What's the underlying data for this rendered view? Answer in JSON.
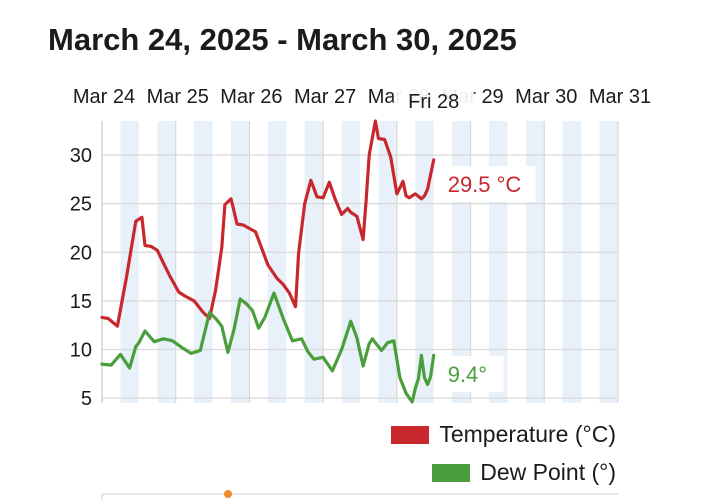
{
  "header": {
    "title": "March 24, 2025 - March 30, 2025"
  },
  "tooltip": {
    "label": "Fri 28"
  },
  "colors": {
    "temperature": "#c8282d",
    "dew_point": "#4a9e3c",
    "day_band": "#e8f1f9",
    "grid": "#d9d9d9"
  },
  "chart_data": {
    "type": "line",
    "title": "",
    "xlabel": "",
    "ylabel": "",
    "ylim": [
      4.5,
      33.5
    ],
    "y_ticks": [
      5,
      10,
      15,
      20,
      25,
      30
    ],
    "grid": true,
    "legend_position": "bottom-right",
    "x_domain": [
      "2025-03-24T00:00",
      "2025-03-31T00:00"
    ],
    "x_ticks": [
      {
        "date": "2025-03-24",
        "label": "Mar 24"
      },
      {
        "date": "2025-03-25",
        "label": "Mar 25"
      },
      {
        "date": "2025-03-26",
        "label": "Mar 26"
      },
      {
        "date": "2025-03-27",
        "label": "Mar 27"
      },
      {
        "date": "2025-03-28",
        "label": "Mar 28"
      },
      {
        "date": "2025-03-29",
        "label": "Mar 29"
      },
      {
        "date": "2025-03-30",
        "label": "Mar 30"
      },
      {
        "date": "2025-03-31",
        "label": "Mar 31"
      }
    ],
    "series": [
      {
        "name": "Temperature (°C)",
        "end_label": "29.5 °C",
        "x": [
          "2025-03-24T00:00",
          "2025-03-24T02:00",
          "2025-03-24T05:00",
          "2025-03-24T08:00",
          "2025-03-24T11:00",
          "2025-03-24T13:00",
          "2025-03-24T14:00",
          "2025-03-24T16:00",
          "2025-03-24T18:00",
          "2025-03-24T20:00",
          "2025-03-24T22:00",
          "2025-03-25T01:00",
          "2025-03-25T03:00",
          "2025-03-25T06:00",
          "2025-03-25T09:00",
          "2025-03-25T11:00",
          "2025-03-25T13:00",
          "2025-03-25T15:00",
          "2025-03-25T16:00",
          "2025-03-25T18:00",
          "2025-03-25T20:00",
          "2025-03-25T22:00",
          "2025-03-26T02:00",
          "2025-03-26T06:00",
          "2025-03-26T09:00",
          "2025-03-26T11:00",
          "2025-03-26T13:00",
          "2025-03-26T15:00",
          "2025-03-26T16:00",
          "2025-03-26T18:00",
          "2025-03-26T20:00",
          "2025-03-26T22:00",
          "2025-03-27T00:00",
          "2025-03-27T02:00",
          "2025-03-27T04:00",
          "2025-03-27T06:00",
          "2025-03-27T08:00",
          "2025-03-27T09:00",
          "2025-03-27T11:00",
          "2025-03-27T13:00",
          "2025-03-27T14:00",
          "2025-03-27T15:00",
          "2025-03-27T17:00",
          "2025-03-27T18:00",
          "2025-03-27T20:00",
          "2025-03-27T22:00",
          "2025-03-28T00:00",
          "2025-03-28T02:00",
          "2025-03-28T03:00",
          "2025-03-28T04:00",
          "2025-03-28T06:00",
          "2025-03-28T08:00",
          "2025-03-28T09:00",
          "2025-03-28T10:00",
          "2025-03-28T12:00"
        ],
        "y": [
          13.3,
          13.2,
          12.4,
          17.5,
          23.2,
          23.6,
          20.7,
          20.6,
          20.2,
          18.9,
          17.6,
          15.9,
          15.5,
          15.0,
          13.8,
          13.2,
          16.1,
          20.5,
          24.9,
          25.5,
          22.9,
          22.8,
          22.1,
          18.7,
          17.3,
          16.7,
          15.8,
          14.4,
          19.9,
          25.0,
          27.4,
          25.7,
          25.6,
          27.2,
          25.4,
          23.9,
          24.5,
          24.1,
          23.7,
          21.3,
          25.3,
          30.0,
          33.5,
          31.7,
          31.6,
          29.8,
          26.0,
          27.3,
          25.8,
          25.6,
          26.0,
          25.5,
          25.8,
          26.5,
          29.5
        ]
      },
      {
        "name": "Dew Point (°)",
        "end_label": "9.4°",
        "x": [
          "2025-03-24T00:00",
          "2025-03-24T03:00",
          "2025-03-24T06:00",
          "2025-03-24T09:00",
          "2025-03-24T11:00",
          "2025-03-24T12:00",
          "2025-03-24T14:00",
          "2025-03-24T17:00",
          "2025-03-24T20:00",
          "2025-03-24T23:00",
          "2025-03-25T02:00",
          "2025-03-25T05:00",
          "2025-03-25T08:00",
          "2025-03-25T11:00",
          "2025-03-25T13:00",
          "2025-03-25T15:00",
          "2025-03-25T17:00",
          "2025-03-25T19:00",
          "2025-03-25T21:00",
          "2025-03-25T23:00",
          "2025-03-26T01:00",
          "2025-03-26T03:00",
          "2025-03-26T05:00",
          "2025-03-26T08:00",
          "2025-03-26T11:00",
          "2025-03-26T14:00",
          "2025-03-26T17:00",
          "2025-03-26T19:00",
          "2025-03-26T21:00",
          "2025-03-27T00:00",
          "2025-03-27T03:00",
          "2025-03-27T06:00",
          "2025-03-27T09:00",
          "2025-03-27T11:00",
          "2025-03-27T13:00",
          "2025-03-27T15:00",
          "2025-03-27T16:00",
          "2025-03-27T17:00",
          "2025-03-27T19:00",
          "2025-03-27T21:00",
          "2025-03-27T23:00",
          "2025-03-28T01:00",
          "2025-03-28T03:00",
          "2025-03-28T05:00",
          "2025-03-28T06:00",
          "2025-03-28T07:00",
          "2025-03-28T08:00",
          "2025-03-28T09:00",
          "2025-03-28T10:00",
          "2025-03-28T11:00",
          "2025-03-28T12:00"
        ],
        "y": [
          8.5,
          8.4,
          9.5,
          8.1,
          10.3,
          10.7,
          11.9,
          10.8,
          11.1,
          10.9,
          10.2,
          9.6,
          9.9,
          13.8,
          13.2,
          12.4,
          9.7,
          12.1,
          15.2,
          14.7,
          14.0,
          12.2,
          13.3,
          15.8,
          13.2,
          10.9,
          11.1,
          9.8,
          9.0,
          9.2,
          7.8,
          10.0,
          12.9,
          11.2,
          8.3,
          10.6,
          11.1,
          10.7,
          9.9,
          10.7,
          10.9,
          7.1,
          5.5,
          4.6,
          6.0,
          7.0,
          9.4,
          7.1,
          6.4,
          7.2,
          9.4
        ]
      }
    ]
  }
}
